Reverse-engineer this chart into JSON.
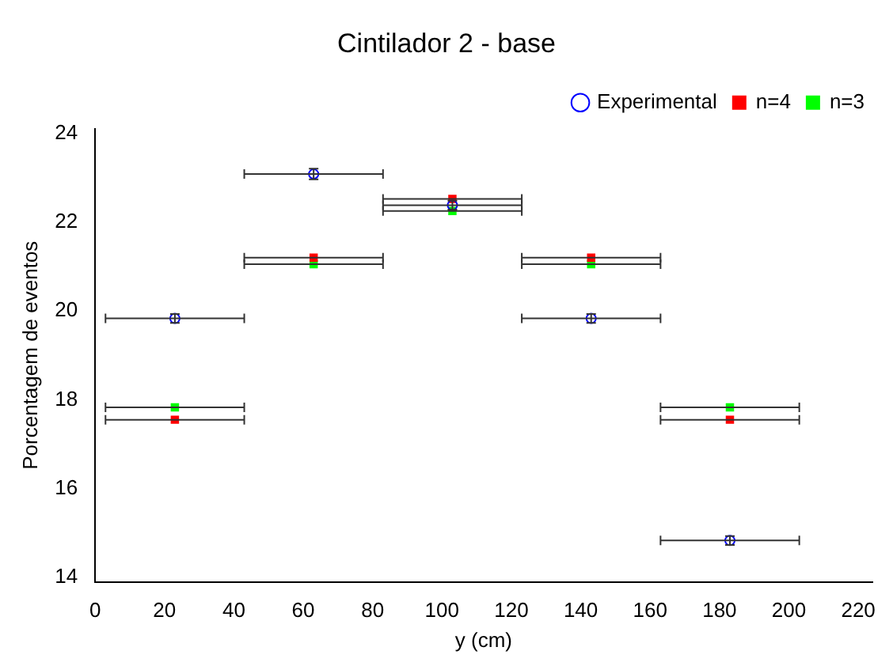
{
  "chart_data": {
    "type": "scatter",
    "title": "Cintilador 2 - base",
    "xlabel": "y (cm)",
    "ylabel": "Porcentagem de eventos",
    "x": [
      23,
      63,
      103,
      143,
      183
    ],
    "series": [
      {
        "name": "Experimental",
        "color": "#0000ff",
        "marker": "circle",
        "values": [
          19.83,
          23.08,
          22.38,
          19.83,
          14.83
        ],
        "errors": [
          0.1,
          0.12,
          0.1,
          0.1,
          0.1
        ],
        "xerrors": [
          20,
          20,
          20,
          20,
          20
        ]
      },
      {
        "name": "n=4",
        "color": "#ff0000",
        "marker": "square",
        "values": [
          17.55,
          21.2,
          22.52,
          21.2,
          17.55
        ],
        "xerrors": [
          20,
          20,
          20,
          20,
          20
        ]
      },
      {
        "name": "n=3",
        "color": "#00ff00",
        "marker": "square",
        "values": [
          17.83,
          21.05,
          22.25,
          21.05,
          17.83
        ],
        "xerrors": [
          20,
          20,
          20,
          20,
          20
        ]
      }
    ],
    "xlim": [
      0,
      224
    ],
    "xticks": [
      0,
      20,
      40,
      60,
      80,
      100,
      120,
      140,
      160,
      180,
      200,
      220
    ],
    "ylim": [
      13.9,
      24.1
    ],
    "yticks": [
      14,
      16,
      18,
      20,
      22,
      24
    ],
    "grid": false,
    "legend": "top right"
  }
}
